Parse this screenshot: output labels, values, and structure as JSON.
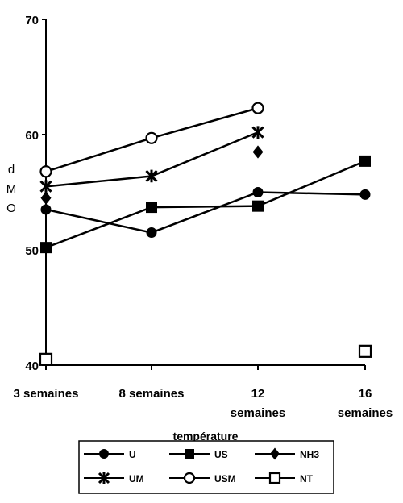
{
  "chart_data": {
    "type": "line",
    "title": "",
    "xlabel": "température",
    "ylabel": [
      "d",
      "M",
      "O"
    ],
    "categories": [
      "3 semaines",
      "8 semaines",
      "12 semaines",
      "16 semaines"
    ],
    "ylim": [
      40,
      70
    ],
    "yticks": [
      40,
      50,
      60,
      70
    ],
    "grid": false,
    "legend_position": "bottom",
    "series": [
      {
        "name": "U",
        "marker": "filled-circle",
        "values": [
          53.5,
          51.5,
          55,
          54.8
        ]
      },
      {
        "name": "US",
        "marker": "filled-square",
        "values": [
          50.2,
          53.7,
          53.8,
          57.7
        ]
      },
      {
        "name": "NH3",
        "marker": "filled-diamond",
        "values": [
          54.5,
          null,
          58.5,
          null
        ]
      },
      {
        "name": "UM",
        "marker": "star",
        "values": [
          55.5,
          56.4,
          60.2,
          null
        ]
      },
      {
        "name": "USM",
        "marker": "open-circle",
        "values": [
          56.8,
          59.7,
          62.3,
          null
        ]
      },
      {
        "name": "NT",
        "marker": "open-square",
        "values": [
          40.5,
          null,
          null,
          41.2
        ]
      }
    ]
  }
}
